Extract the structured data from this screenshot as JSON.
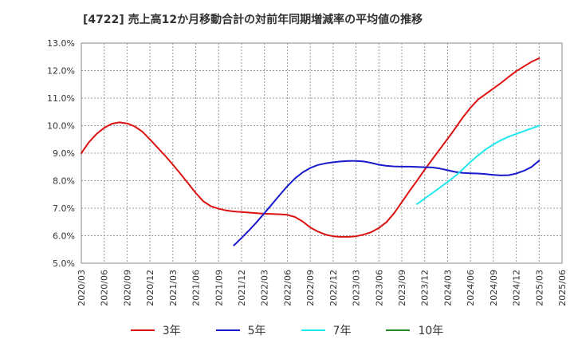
{
  "chart_data": {
    "type": "line",
    "title": "[4722]  売上高12か月移動合計の対前年同期増減率の平均値の推移",
    "xlabel": "",
    "ylabel": "",
    "ylim": [
      5.0,
      13.0
    ],
    "y_ticks": [
      "5.0%",
      "6.0%",
      "7.0%",
      "8.0%",
      "9.0%",
      "10.0%",
      "11.0%",
      "12.0%",
      "13.0%"
    ],
    "x_ticks": [
      "2020/03",
      "2020/06",
      "2020/09",
      "2020/12",
      "2021/03",
      "2021/06",
      "2021/09",
      "2021/12",
      "2022/03",
      "2022/06",
      "2022/09",
      "2022/12",
      "2023/03",
      "2023/06",
      "2023/09",
      "2023/12",
      "2024/03",
      "2024/06",
      "2024/09",
      "2024/12",
      "2025/03",
      "2025/06"
    ],
    "grid": true,
    "legend_position": "bottom",
    "series": [
      {
        "name": "3年",
        "color": "#dd1111",
        "x": [
          "2020/03",
          "2020/04",
          "2020/05",
          "2020/06",
          "2020/07",
          "2020/08",
          "2020/09",
          "2020/10",
          "2020/11",
          "2020/12",
          "2021/01",
          "2021/02",
          "2021/03",
          "2021/04",
          "2021/05",
          "2021/06",
          "2021/07",
          "2021/08",
          "2021/09",
          "2021/10",
          "2021/11",
          "2021/12",
          "2022/01",
          "2022/02",
          "2022/03",
          "2022/04",
          "2022/05",
          "2022/06",
          "2022/07",
          "2022/08",
          "2022/09",
          "2022/10",
          "2022/11",
          "2022/12",
          "2023/01",
          "2023/02",
          "2023/03",
          "2023/04",
          "2023/05",
          "2023/06",
          "2023/07",
          "2023/08",
          "2023/09",
          "2023/10",
          "2023/11",
          "2023/12",
          "2024/01",
          "2024/02",
          "2024/03",
          "2024/04",
          "2024/05",
          "2024/06",
          "2024/07",
          "2024/08",
          "2024/09",
          "2024/10",
          "2024/11",
          "2024/12",
          "2025/01",
          "2025/02",
          "2025/03"
        ],
        "values": [
          9.0,
          9.4,
          9.7,
          9.92,
          10.07,
          10.12,
          10.08,
          9.97,
          9.78,
          9.5,
          9.2,
          8.9,
          8.58,
          8.25,
          7.9,
          7.55,
          7.25,
          7.07,
          6.98,
          6.92,
          6.88,
          6.86,
          6.84,
          6.82,
          6.8,
          6.79,
          6.78,
          6.76,
          6.68,
          6.52,
          6.3,
          6.15,
          6.04,
          5.98,
          5.96,
          5.96,
          5.98,
          6.04,
          6.13,
          6.28,
          6.5,
          6.82,
          7.22,
          7.62,
          8.0,
          8.4,
          8.78,
          9.15,
          9.52,
          9.9,
          10.3,
          10.65,
          10.95,
          11.15,
          11.35,
          11.55,
          11.77,
          11.98,
          12.15,
          12.32,
          12.45
        ]
      },
      {
        "name": "5年",
        "color": "#1a1acc",
        "x": [
          "2021/11",
          "2021/12",
          "2022/01",
          "2022/02",
          "2022/03",
          "2022/04",
          "2022/05",
          "2022/06",
          "2022/07",
          "2022/08",
          "2022/09",
          "2022/10",
          "2022/11",
          "2022/12",
          "2023/01",
          "2023/02",
          "2023/03",
          "2023/04",
          "2023/05",
          "2023/06",
          "2023/07",
          "2023/08",
          "2023/09",
          "2023/10",
          "2023/11",
          "2023/12",
          "2024/01",
          "2024/02",
          "2024/03",
          "2024/04",
          "2024/05",
          "2024/06",
          "2024/07",
          "2024/08",
          "2024/09",
          "2024/10",
          "2024/11",
          "2024/12",
          "2025/01",
          "2025/02",
          "2025/03"
        ],
        "values": [
          5.65,
          5.92,
          6.2,
          6.5,
          6.82,
          7.15,
          7.48,
          7.8,
          8.08,
          8.3,
          8.46,
          8.57,
          8.63,
          8.67,
          8.7,
          8.72,
          8.72,
          8.7,
          8.65,
          8.58,
          8.54,
          8.52,
          8.51,
          8.51,
          8.5,
          8.49,
          8.48,
          8.44,
          8.38,
          8.32,
          8.28,
          8.27,
          8.26,
          8.24,
          8.21,
          8.19,
          8.2,
          8.26,
          8.36,
          8.5,
          8.73
        ]
      },
      {
        "name": "7年",
        "color": "#22e8ee",
        "x": [
          "2023/11",
          "2023/12",
          "2024/01",
          "2024/02",
          "2024/03",
          "2024/04",
          "2024/05",
          "2024/06",
          "2024/07",
          "2024/08",
          "2024/09",
          "2024/10",
          "2024/11",
          "2024/12",
          "2025/01",
          "2025/02",
          "2025/03"
        ],
        "values": [
          7.15,
          7.35,
          7.55,
          7.75,
          7.95,
          8.17,
          8.42,
          8.68,
          8.92,
          9.14,
          9.32,
          9.47,
          9.6,
          9.7,
          9.8,
          9.9,
          10.0
        ]
      },
      {
        "name": "10年",
        "color": "#228b22",
        "x": [],
        "values": []
      }
    ]
  }
}
